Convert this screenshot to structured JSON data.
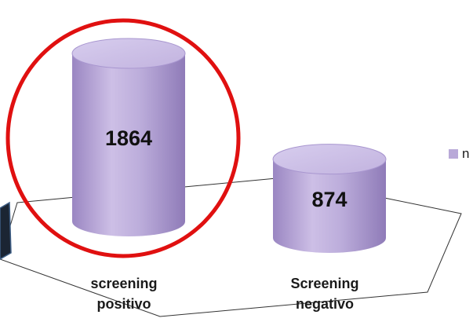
{
  "chart_data": {
    "type": "bar",
    "style": "3d-cylinder",
    "categories": [
      "screening positivo",
      "Screening negativo"
    ],
    "category_lines": [
      [
        "screening",
        "positivo"
      ],
      [
        "Screening",
        "negativo"
      ]
    ],
    "series": [
      {
        "name": "n",
        "values": [
          1864,
          874
        ],
        "color": "#b9a9d8"
      }
    ],
    "data_labels": [
      "1864",
      "874"
    ],
    "legend": {
      "entries": [
        "n"
      ],
      "placement": "right"
    },
    "highlight": {
      "category": "screening positivo",
      "shape": "circle",
      "color": "#e01010"
    },
    "grid": false,
    "title": "",
    "xlabel": "",
    "ylabel": ""
  }
}
